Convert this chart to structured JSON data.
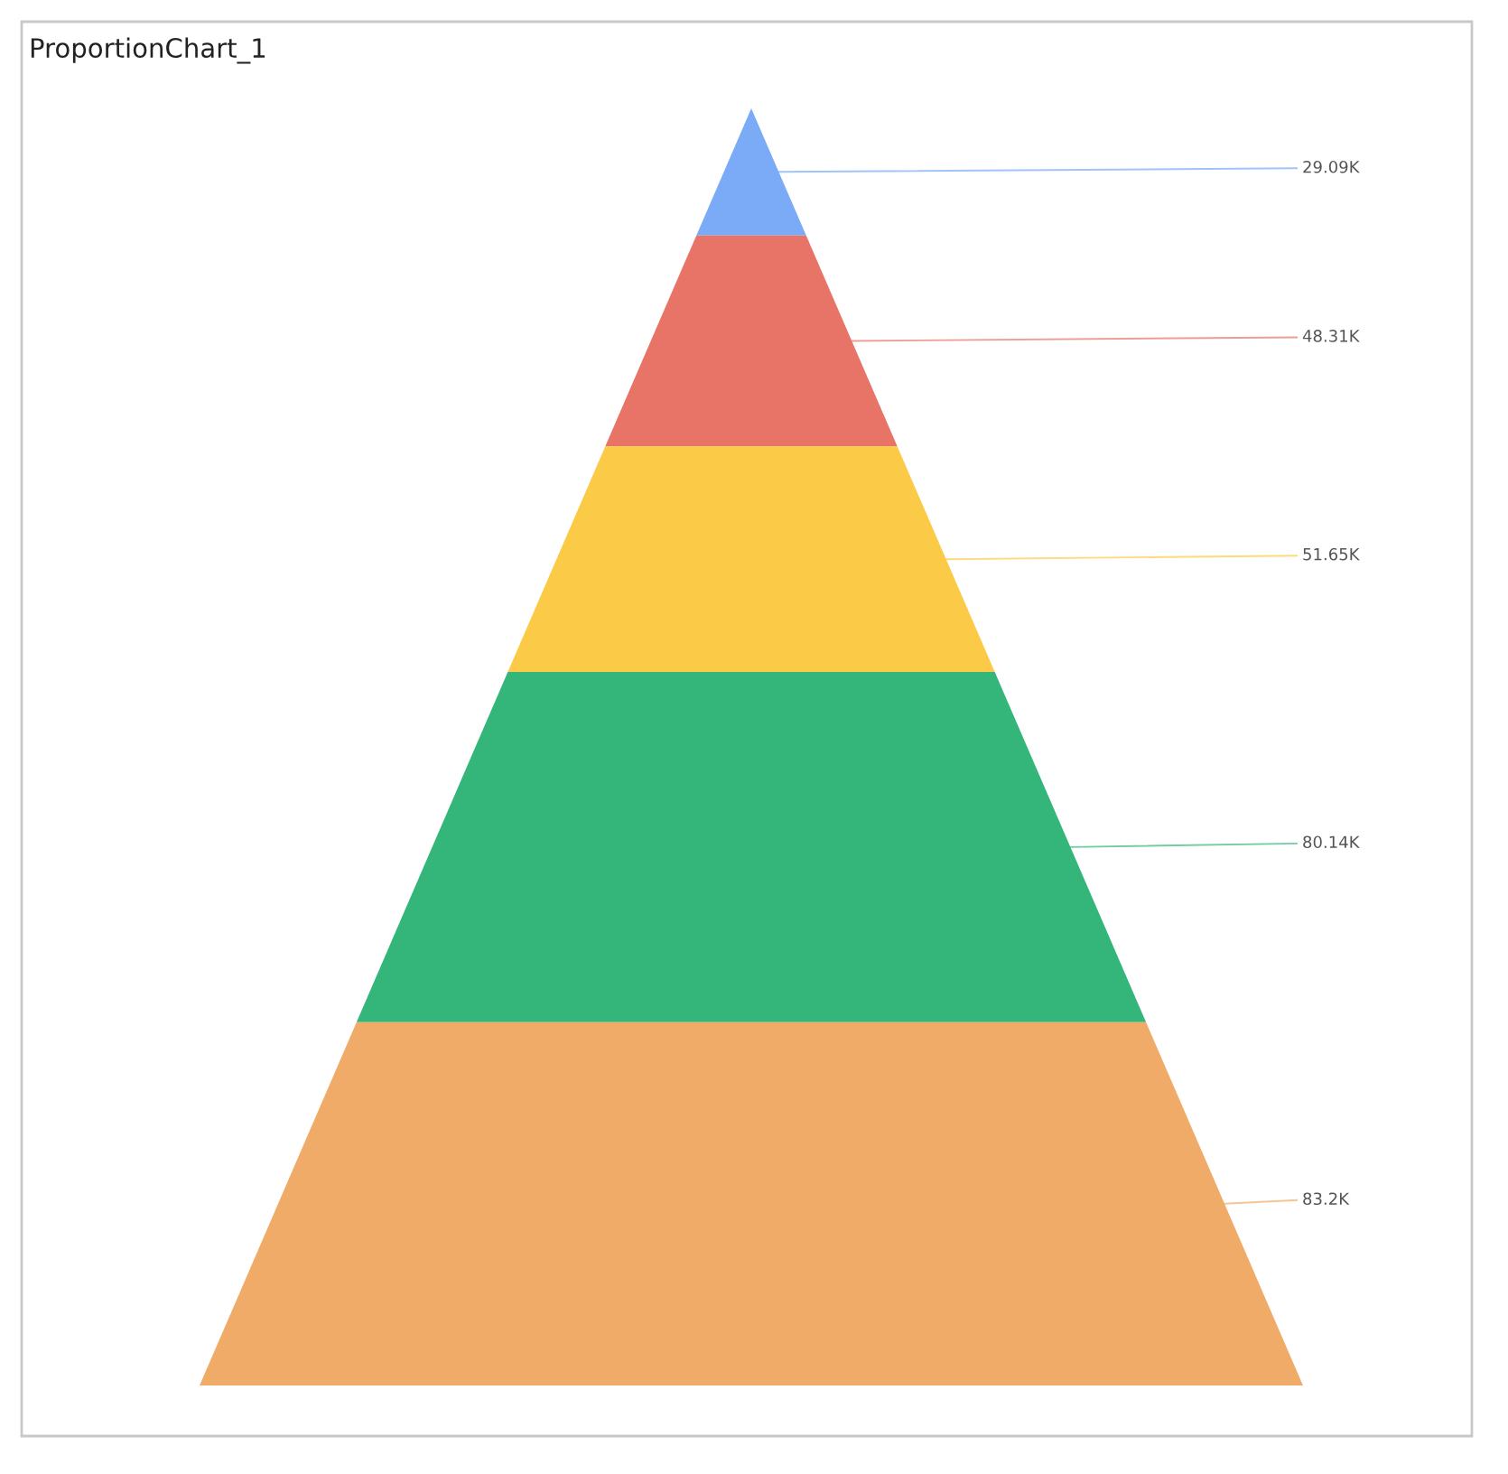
{
  "chart_data": {
    "type": "other",
    "title": "ProportionChart_1",
    "categories": [
      null,
      null,
      null,
      null,
      null
    ],
    "values": [
      29.09,
      48.31,
      51.65,
      80.14,
      83.2
    ],
    "value_labels": [
      "29.09K",
      "48.31K",
      "51.65K",
      "80.14K",
      "83.2K"
    ],
    "colors": [
      "#7baaf7",
      "#e87467",
      "#fbca46",
      "#34b67a",
      "#f0ab69"
    ]
  }
}
